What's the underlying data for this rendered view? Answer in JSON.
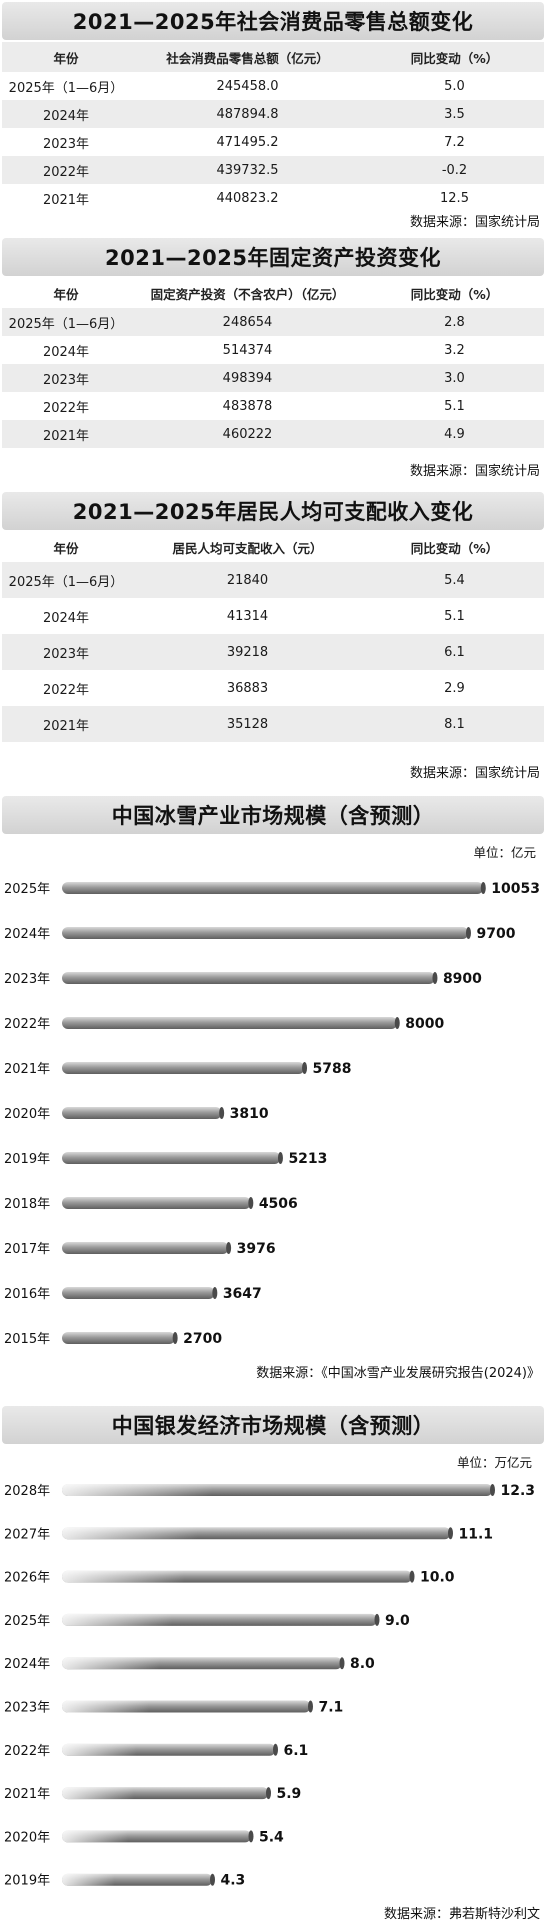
{
  "tables": [
    {
      "title": "2021—2025年社会消费品零售总额变化",
      "headers": [
        "年份",
        "社会消费品零售总额（亿元）",
        "同比变动（%）"
      ],
      "rows": [
        [
          "2025年（1—6月）",
          "245458.0",
          "5.0"
        ],
        [
          "2024年",
          "487894.8",
          "3.5"
        ],
        [
          "2023年",
          "471495.2",
          "7.2"
        ],
        [
          "2022年",
          "439732.5",
          "-0.2"
        ],
        [
          "2021年",
          "440823.2",
          "12.5"
        ]
      ],
      "source": "数据来源：国家统计局"
    },
    {
      "title": "2021—2025年固定资产投资变化",
      "headers": [
        "年份",
        "固定资产投资（不含农户）（亿元）",
        "同比变动（%）"
      ],
      "rows": [
        [
          "2025年（1—6月）",
          "248654",
          "2.8"
        ],
        [
          "2024年",
          "514374",
          "3.2"
        ],
        [
          "2023年",
          "498394",
          "3.0"
        ],
        [
          "2022年",
          "483878",
          "5.1"
        ],
        [
          "2021年",
          "460222",
          "4.9"
        ]
      ],
      "source": "数据来源：国家统计局"
    },
    {
      "title": "2021—2025年居民人均可支配收入变化",
      "headers": [
        "年份",
        "居民人均可支配收入（元）",
        "同比变动（%）"
      ],
      "rows": [
        [
          "2025年（1—6月）",
          "21840",
          "5.4"
        ],
        [
          "2024年",
          "41314",
          "5.1"
        ],
        [
          "2023年",
          "39218",
          "6.1"
        ],
        [
          "2022年",
          "36883",
          "2.9"
        ],
        [
          "2021年",
          "35128",
          "8.1"
        ]
      ],
      "source": "数据来源：国家统计局"
    }
  ],
  "chart_data": [
    {
      "type": "bar",
      "orientation": "horizontal",
      "title": "中国冰雪产业市场规模（含预测）",
      "unit": "单位：亿元",
      "categories": [
        "2025年",
        "2024年",
        "2023年",
        "2022年",
        "2021年",
        "2020年",
        "2019年",
        "2018年",
        "2017年",
        "2016年",
        "2015年"
      ],
      "values": [
        10053,
        9700,
        8900,
        8000,
        5788,
        3810,
        5213,
        4506,
        3976,
        3647,
        2700
      ],
      "labels": [
        "10053",
        "9700",
        "8900",
        "8000",
        "5788",
        "3810",
        "5213",
        "4506",
        "3976",
        "3647",
        "2700"
      ],
      "xlim": [
        0,
        10500
      ],
      "grid": false,
      "source": "数据来源：《中国冰雪产业发展研究报告(2024)》"
    },
    {
      "type": "bar",
      "orientation": "horizontal",
      "title": "中国银发经济市场规模（含预测）",
      "unit": "单位：万亿元",
      "categories": [
        "2028年",
        "2027年",
        "2026年",
        "2025年",
        "2024年",
        "2023年",
        "2022年",
        "2021年",
        "2020年",
        "2019年"
      ],
      "values": [
        12.3,
        11.1,
        10.0,
        9.0,
        8.0,
        7.1,
        6.1,
        5.9,
        5.4,
        4.3
      ],
      "labels": [
        "12.3",
        "11.1",
        "10.0",
        "9.0",
        "8.0",
        "7.1",
        "6.1",
        "5.9",
        "5.4",
        "4.3"
      ],
      "xlim": [
        0,
        13
      ],
      "grid": false,
      "source": "数据来源：弗若斯特沙利文"
    }
  ]
}
